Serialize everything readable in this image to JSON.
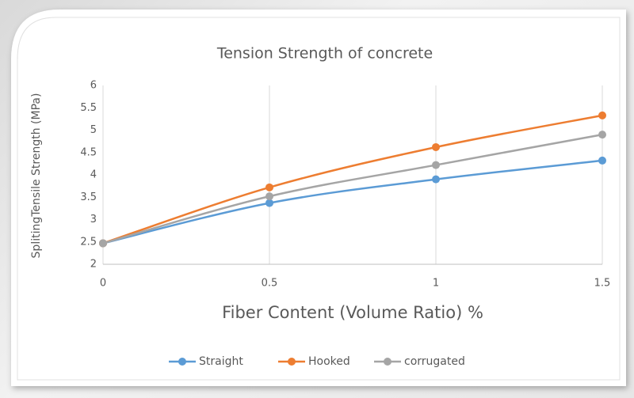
{
  "chart_data": {
    "type": "line",
    "title": "Tension Strength of concrete",
    "x_label": "Fiber Content (Volume Ratio) %",
    "y_label": "SplitingTensile Strength (MPa)",
    "x": [
      0,
      0.5,
      1,
      1.5
    ],
    "series": [
      {
        "name": "Straight",
        "color": "#5b9bd5",
        "values": [
          2.47,
          3.37,
          3.9,
          4.32
        ]
      },
      {
        "name": "Hooked",
        "color": "#ed7d31",
        "values": [
          2.47,
          3.72,
          4.62,
          5.33
        ]
      },
      {
        "name": "corrugated",
        "color": "#a5a5a5",
        "values": [
          2.47,
          3.52,
          4.22,
          4.9
        ]
      }
    ],
    "xlim": [
      0,
      1.5
    ],
    "xticks": [
      0,
      0.5,
      1,
      1.5
    ],
    "ylim": [
      2,
      6
    ],
    "yticks": [
      2,
      2.5,
      3,
      3.5,
      4,
      4.5,
      5,
      5.5,
      6
    ],
    "grid": "x",
    "smooth": true,
    "legend": "bottom"
  }
}
